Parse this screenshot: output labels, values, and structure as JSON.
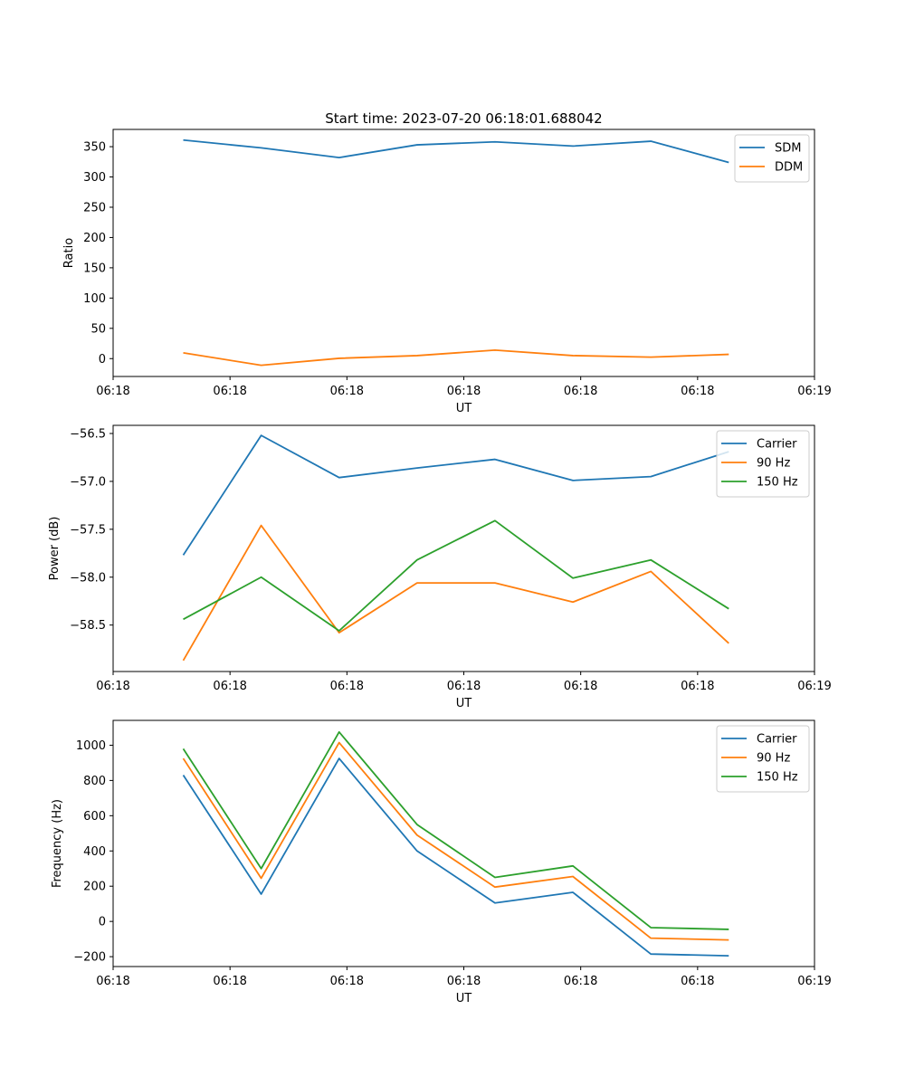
{
  "figure_title": "Start time: 2023-07-20 06:18:01.688042",
  "chart_data": [
    {
      "type": "line",
      "title": "Start time: 2023-07-20 06:18:01.688042",
      "xlabel": "UT",
      "ylabel": "Ratio",
      "x": [
        1,
        2,
        3,
        4,
        5,
        6,
        7,
        8
      ],
      "xlim": [
        0.1,
        9.1
      ],
      "x_ticks": [
        0.1,
        1.6,
        3.1,
        4.6,
        6.1,
        7.6,
        9.1
      ],
      "x_tick_labels": [
        "06:18",
        "06:18",
        "06:18",
        "06:18",
        "06:18",
        "06:18",
        "06:19"
      ],
      "ylim": [
        -29.5,
        378.5
      ],
      "y_ticks": [
        0,
        50,
        100,
        150,
        200,
        250,
        300,
        350
      ],
      "y_tick_labels": [
        "0",
        "50",
        "100",
        "150",
        "200",
        "250",
        "300",
        "350"
      ],
      "legend_position": "top-right",
      "series": [
        {
          "name": "SDM",
          "color": "#1f77b4",
          "values": [
            361,
            348,
            332,
            353,
            358,
            351,
            359,
            324
          ]
        },
        {
          "name": "DDM",
          "color": "#ff7f0e",
          "values": [
            9.5,
            -11,
            0.5,
            5,
            14,
            5,
            2.5,
            7
          ]
        }
      ]
    },
    {
      "type": "line",
      "title": "",
      "xlabel": "UT",
      "ylabel": "Power (dB)",
      "x": [
        1,
        2,
        3,
        4,
        5,
        6,
        7,
        8
      ],
      "xlim": [
        0.1,
        9.1
      ],
      "x_ticks": [
        0.1,
        1.6,
        3.1,
        4.6,
        6.1,
        7.6,
        9.1
      ],
      "x_tick_labels": [
        "06:18",
        "06:18",
        "06:18",
        "06:18",
        "06:18",
        "06:18",
        "06:19"
      ],
      "ylim": [
        -58.985,
        -56.415
      ],
      "y_ticks": [
        -58.5,
        -58.0,
        -57.5,
        -57.0,
        -56.5
      ],
      "y_tick_labels": [
        "−58.5",
        "−58.0",
        "−57.5",
        "−57.0",
        "−56.5"
      ],
      "legend_position": "top-right",
      "series": [
        {
          "name": "Carrier",
          "color": "#1f77b4",
          "values": [
            -57.77,
            -56.52,
            -56.96,
            -56.86,
            -56.77,
            -56.99,
            -56.95,
            -56.69
          ]
        },
        {
          "name": "90 Hz",
          "color": "#ff7f0e",
          "values": [
            -58.87,
            -57.46,
            -58.58,
            -58.06,
            -58.06,
            -58.26,
            -57.94,
            -58.69
          ]
        },
        {
          "name": "150 Hz",
          "color": "#2ca02c",
          "values": [
            -58.44,
            -58.0,
            -58.56,
            -57.82,
            -57.41,
            -58.01,
            -57.82,
            -58.33
          ]
        }
      ]
    },
    {
      "type": "line",
      "title": "",
      "xlabel": "UT",
      "ylabel": "Frequency (Hz)",
      "x": [
        1,
        2,
        3,
        4,
        5,
        6,
        7,
        8
      ],
      "xlim": [
        0.1,
        9.1
      ],
      "x_ticks": [
        0.1,
        1.6,
        3.1,
        4.6,
        6.1,
        7.6,
        9.1
      ],
      "x_tick_labels": [
        "06:18",
        "06:18",
        "06:18",
        "06:18",
        "06:18",
        "06:18",
        "06:19"
      ],
      "ylim": [
        -256,
        1141
      ],
      "y_ticks": [
        -200,
        0,
        200,
        400,
        600,
        800,
        1000
      ],
      "y_tick_labels": [
        "−200",
        "0",
        "200",
        "400",
        "600",
        "800",
        "1000"
      ],
      "legend_position": "top-right",
      "series": [
        {
          "name": "Carrier",
          "color": "#1f77b4",
          "values": [
            830,
            155,
            925,
            400,
            105,
            165,
            -185,
            -195
          ]
        },
        {
          "name": "90 Hz",
          "color": "#ff7f0e",
          "values": [
            925,
            245,
            1015,
            490,
            195,
            255,
            -95,
            -105
          ]
        },
        {
          "name": "150 Hz",
          "color": "#2ca02c",
          "values": [
            980,
            300,
            1075,
            550,
            250,
            315,
            -35,
            -45
          ]
        }
      ]
    }
  ]
}
